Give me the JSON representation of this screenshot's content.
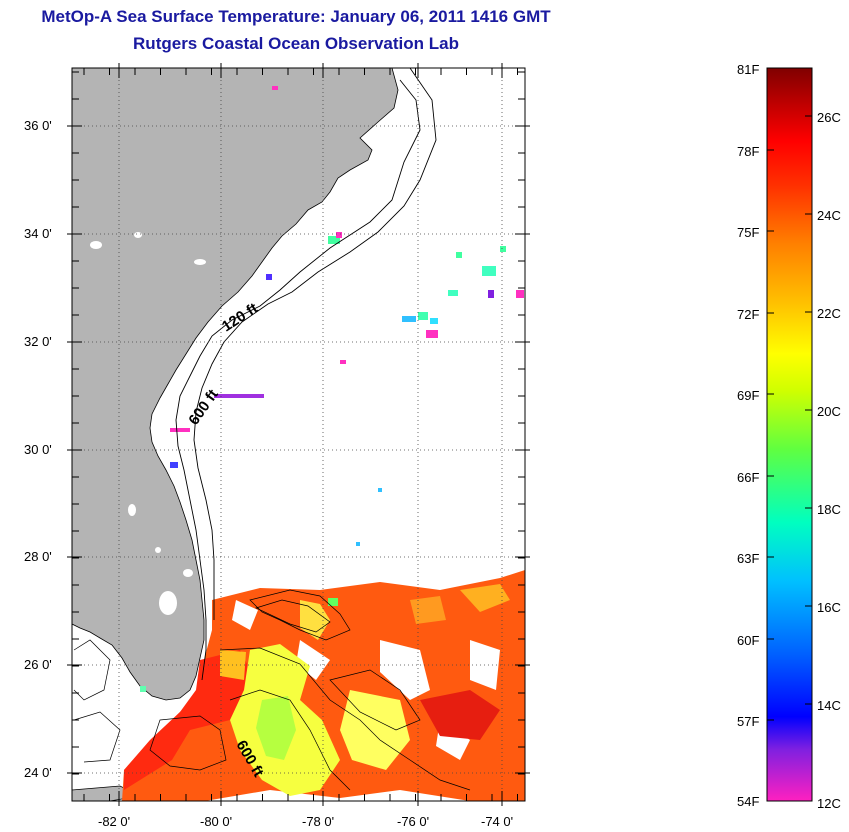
{
  "title": "MetOp-A Sea Surface Temperature:  January 06, 2011 1416 GMT",
  "subtitle": "Rutgers Coastal Ocean Observation Lab",
  "map": {
    "lat_labels": [
      "36 0'",
      "34 0'",
      "32 0'",
      "30 0'",
      "28 0'",
      "26 0'",
      "24 0'"
    ],
    "lon_labels": [
      "-82 0'",
      "-80 0'",
      "-78 0'",
      "-76 0'",
      "-74 0'"
    ],
    "isobath_labels": [
      "120 ft",
      "600 ft",
      "600 ft"
    ],
    "land_color": "#b4b4b4",
    "background_color": "#ffffff"
  },
  "colorbar": {
    "fahrenheit_labels": [
      "81F",
      "78F",
      "75F",
      "72F",
      "69F",
      "66F",
      "63F",
      "60F",
      "57F",
      "54F"
    ],
    "celsius_labels": [
      "26C",
      "24C",
      "22C",
      "20C",
      "18C",
      "16C",
      "14C",
      "12C"
    ],
    "color_stops": [
      "#ff20c0",
      "#8020e0",
      "#0000ff",
      "#0060ff",
      "#00c0ff",
      "#00ffc0",
      "#60ff40",
      "#d0ff00",
      "#ffff00",
      "#ffc000",
      "#ff8000",
      "#ff3000",
      "#ff0000",
      "#c00000",
      "#800000"
    ]
  }
}
